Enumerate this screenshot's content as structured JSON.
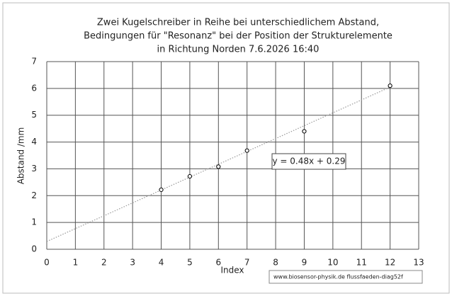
{
  "chart_data": {
    "type": "scatter",
    "title": [
      "Zwei Kugelschreiber in Reihe bei unterschiedlichem Abstand,",
      "Bedingungen für \"Resonanz\" bei der Position der Strukturelemente",
      "in Richtung Norden 7.6.2026 16:40"
    ],
    "x_label": "Index",
    "y_label": "Abstand /mm",
    "series": [
      {
        "color": "#000000",
        "x": [
          4,
          5,
          6,
          7,
          9,
          12
        ],
        "values": [
          2.22,
          2.72,
          3.08,
          3.68,
          4.4,
          6.1
        ]
      }
    ],
    "trendline": {
      "slope": 0.48,
      "intercept": 0.29,
      "label": "y = 0.48x + 0.29",
      "color": "#999999"
    },
    "xlim": [
      0,
      13
    ],
    "xticks": [
      0,
      1,
      2,
      3,
      4,
      5,
      6,
      7,
      8,
      9,
      10,
      11,
      12,
      13
    ],
    "ylim": [
      0,
      7
    ],
    "yticks": [
      0,
      1,
      2,
      3,
      4,
      5,
      6,
      7
    ],
    "grid": true,
    "footer": "www.biosensor-physik.de  flussfaeden-diag52f"
  }
}
